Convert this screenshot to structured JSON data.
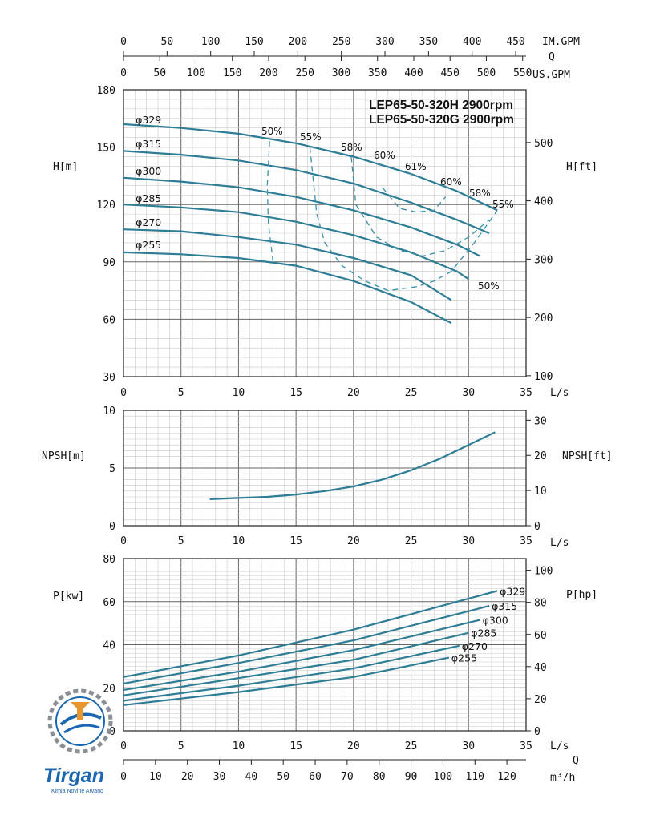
{
  "titles": [
    "LEP65-50-320H 2900rpm",
    "LEP65-50-320G 2900rpm"
  ],
  "top_axes": {
    "im_gpm": {
      "label": "IM.GPM",
      "ticks": [
        "0",
        "50",
        "100",
        "150",
        "200",
        "250",
        "300",
        "350",
        "400",
        "450"
      ]
    },
    "q_label": "Q",
    "us_gpm": {
      "label": "US.GPM",
      "ticks": [
        "0",
        "50",
        "100",
        "150",
        "200",
        "250",
        "300",
        "350",
        "400",
        "450",
        "500",
        "550"
      ]
    }
  },
  "x_axis": {
    "label": "L/s",
    "ticks": [
      "0",
      "5",
      "10",
      "15",
      "20",
      "25",
      "30",
      "35"
    ]
  },
  "m3h_axis": {
    "label": "m³/h",
    "q_label": "Q",
    "ticks": [
      "0",
      "10",
      "20",
      "30",
      "40",
      "50",
      "60",
      "70",
      "80",
      "90",
      "100",
      "110",
      "120"
    ]
  },
  "head_panel": {
    "ylabel_left": "H[m]",
    "ylabel_right": "H[ft]",
    "left_ticks": [
      "30",
      "60",
      "90",
      "120",
      "150",
      "180"
    ],
    "right_ticks": [
      "100",
      "200",
      "300",
      "400",
      "500"
    ]
  },
  "npsh_panel": {
    "ylabel_left": "NPSH[m]",
    "ylabel_right": "NPSH[ft]",
    "left_ticks": [
      "0",
      "5",
      "10"
    ],
    "right_ticks": [
      "0",
      "10",
      "20",
      "30"
    ]
  },
  "power_panel": {
    "ylabel_left": "P[kw]",
    "ylabel_right": "P[hp]",
    "left_ticks": [
      "0",
      "20",
      "40",
      "60",
      "80"
    ],
    "right_ticks": [
      "0",
      "20",
      "40",
      "60",
      "80",
      "100"
    ]
  },
  "logo": {
    "name": "Tirgan",
    "tagline": "Kimia Novine Arvand"
  },
  "chart_data": [
    {
      "type": "line",
      "panel": "head",
      "xlabel": "L/s",
      "ylabel": "H[m]",
      "xlim": [
        0,
        35
      ],
      "ylim": [
        30,
        180
      ],
      "grid": true,
      "title": "LEP65-50-320H 2900rpm / LEP65-50-320G 2900rpm",
      "series": [
        {
          "name": "φ329",
          "x": [
            0,
            5,
            10,
            15,
            20,
            25,
            29,
            32.5
          ],
          "y": [
            162,
            160,
            157,
            152,
            145,
            136,
            127,
            117
          ]
        },
        {
          "name": "φ315",
          "x": [
            0,
            5,
            10,
            15,
            20,
            25,
            29,
            31.8
          ],
          "y": [
            148,
            146,
            143,
            138,
            131,
            121,
            112,
            105
          ]
        },
        {
          "name": "φ300",
          "x": [
            0,
            5,
            10,
            15,
            20,
            25,
            29,
            31.0
          ],
          "y": [
            134,
            132,
            129,
            124,
            117,
            108,
            99,
            93
          ]
        },
        {
          "name": "φ285",
          "x": [
            0,
            5,
            10,
            15,
            20,
            25,
            29,
            30.0
          ],
          "y": [
            120,
            118.5,
            116,
            111,
            104,
            95,
            85,
            81
          ]
        },
        {
          "name": "φ270",
          "x": [
            0,
            5,
            10,
            15,
            20,
            25,
            28.5
          ],
          "y": [
            107,
            106,
            103,
            99,
            92,
            83,
            70
          ]
        },
        {
          "name": "φ255",
          "x": [
            0,
            5,
            10,
            15,
            20,
            25,
            28.5
          ],
          "y": [
            95,
            94,
            92,
            88,
            80,
            69,
            58
          ]
        }
      ],
      "efficiency_contours": [
        {
          "label": "50%",
          "x": [
            12.7,
            12.5,
            12.6,
            13.0
          ],
          "y": [
            153,
            130,
            110,
            90
          ]
        },
        {
          "label": "55%",
          "x": [
            16.2,
            16.8,
            17.5,
            19.0,
            21.0,
            23.0,
            25.5,
            27.0,
            28.5,
            30.5,
            32.5
          ],
          "y": [
            150,
            115,
            100,
            88,
            80,
            75,
            77,
            80,
            85,
            100,
            117
          ]
        },
        {
          "label": "58%",
          "x": [
            19.8,
            20.2,
            22.0,
            24.0,
            26.0,
            28.0,
            30.0,
            31.8
          ],
          "y": [
            145,
            120,
            103,
            96,
            93,
            96,
            103,
            112
          ]
        },
        {
          "label": "60%",
          "x": [
            22.5,
            24.0,
            25.5,
            27.0,
            28.0
          ],
          "y": [
            129,
            118,
            116,
            117,
            124
          ]
        },
        {
          "label": "61%",
          "x": [],
          "y": []
        },
        {
          "label": "60%",
          "x": [],
          "y": []
        },
        {
          "label": "58%",
          "x": [],
          "y": []
        },
        {
          "label": "55%",
          "x": [],
          "y": []
        },
        {
          "label": "50%",
          "x": [],
          "y": []
        }
      ]
    },
    {
      "type": "line",
      "panel": "npsh",
      "xlabel": "L/s",
      "ylabel": "NPSH[m]",
      "xlim": [
        0,
        35
      ],
      "ylim": [
        0,
        10
      ],
      "grid": true,
      "series": [
        {
          "x": [
            7.5,
            10,
            12.5,
            15,
            17.5,
            20,
            22.5,
            25,
            27.5,
            30,
            32.3
          ],
          "y": [
            2.3,
            2.4,
            2.5,
            2.7,
            3.0,
            3.4,
            4.0,
            4.8,
            5.8,
            7.0,
            8.1
          ]
        }
      ]
    },
    {
      "type": "line",
      "panel": "power",
      "xlabel": "L/s",
      "ylabel": "P[kw]",
      "xlim": [
        0,
        35
      ],
      "ylim": [
        0,
        80
      ],
      "grid": true,
      "series": [
        {
          "name": "φ329",
          "x": [
            0,
            10,
            20,
            32.5
          ],
          "y": [
            25,
            35,
            47,
            65
          ]
        },
        {
          "name": "φ315",
          "x": [
            0,
            10,
            20,
            31.8
          ],
          "y": [
            22,
            31.5,
            42,
            58
          ]
        },
        {
          "name": "φ300",
          "x": [
            0,
            10,
            20,
            31.0
          ],
          "y": [
            19,
            27.5,
            37.5,
            51.5
          ]
        },
        {
          "name": "φ285",
          "x": [
            0,
            10,
            20,
            30.0
          ],
          "y": [
            16.5,
            24.5,
            33,
            45.5
          ]
        },
        {
          "name": "φ270",
          "x": [
            0,
            10,
            20,
            29.2
          ],
          "y": [
            14,
            21,
            29,
            39.5
          ]
        },
        {
          "name": "φ255",
          "x": [
            0,
            10,
            20,
            28.3
          ],
          "y": [
            12,
            18,
            25,
            34
          ]
        }
      ]
    }
  ],
  "colors": {
    "curve": "#2e7d96",
    "efficiency": "#3a8fa8",
    "brand": "#1a66b0",
    "accent": "#e8962d"
  }
}
